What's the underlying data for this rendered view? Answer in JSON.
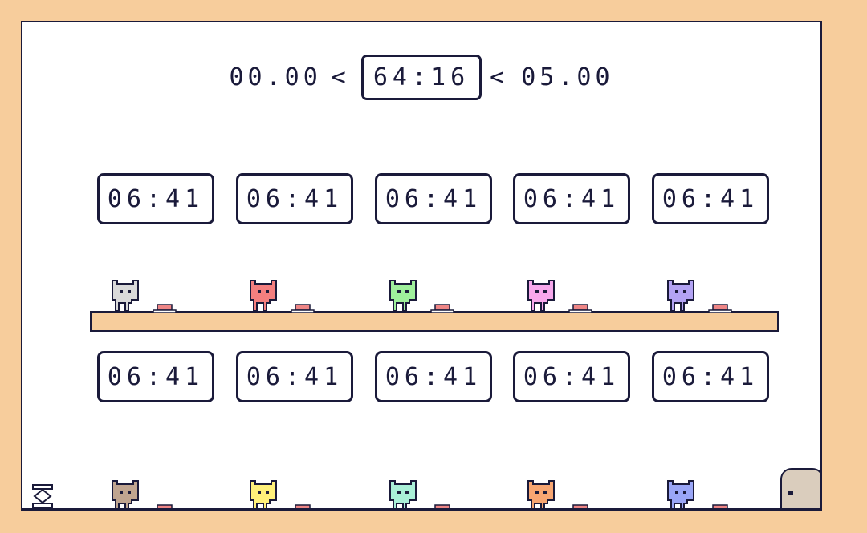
{
  "hud": {
    "lower_limit": "00.00",
    "sep": "<",
    "main_timer": "64:16",
    "upper_limit": "05.00"
  },
  "timers": {
    "top": [
      "06:41",
      "06:41",
      "06:41",
      "06:41",
      "06:41"
    ],
    "bottom": [
      "06:41",
      "06:41",
      "06:41",
      "06:41",
      "06:41"
    ]
  },
  "players_top": [
    {
      "name": "gray-cat",
      "color": "#dadada"
    },
    {
      "name": "red-cat",
      "color": "#f47f7f"
    },
    {
      "name": "green-cat",
      "color": "#9ff09c"
    },
    {
      "name": "pink-cat",
      "color": "#f7a8ec"
    },
    {
      "name": "purple-cat",
      "color": "#b3a3f4"
    }
  ],
  "players_bottom": [
    {
      "name": "brown-cat",
      "color": "#c0a590"
    },
    {
      "name": "yellow-cat",
      "color": "#fff07a"
    },
    {
      "name": "mint-cat",
      "color": "#aaf0d8"
    },
    {
      "name": "orange-cat",
      "color": "#f7a672"
    },
    {
      "name": "blue-cat",
      "color": "#9aa6f7"
    }
  ],
  "colors": {
    "accent": "#f7cd9c",
    "outline": "#1a1a3a",
    "button": "#ee8585",
    "door": "#dacdbd"
  },
  "icons": {
    "spring": "spring-icon",
    "door": "exit-door-icon",
    "button": "floor-button-icon"
  }
}
